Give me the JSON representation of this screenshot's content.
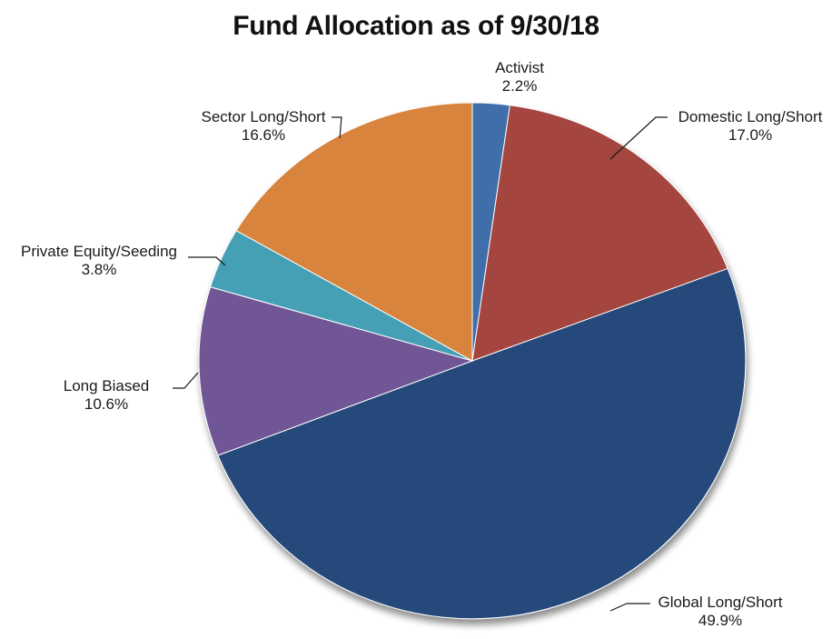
{
  "chart_data": {
    "type": "pie",
    "title": "Fund Allocation as of 9/30/18",
    "slices": [
      {
        "name": "Activist",
        "value": 2.2,
        "label": "2.2%",
        "color": "#3f6eaa"
      },
      {
        "name": "Domestic Long/Short",
        "value": 17.0,
        "label": "17.0%",
        "color": "#a4443f"
      },
      {
        "name": "Global Long/Short",
        "value": 49.9,
        "label": "49.9%",
        "color": "#254a7c"
      },
      {
        "name": "Long Biased",
        "value": 10.6,
        "label": "10.6%",
        "color": "#715795"
      },
      {
        "name": "Private Equity/Seeding",
        "value": 3.8,
        "label": "3.8%",
        "color": "#44a0b6"
      },
      {
        "name": "Sector Long/Short",
        "value": 16.6,
        "label": "16.6%",
        "color": "#d8843e"
      }
    ],
    "start_angle": "12 o'clock",
    "direction": "clockwise",
    "legend": "none (data labels with leader lines)"
  }
}
